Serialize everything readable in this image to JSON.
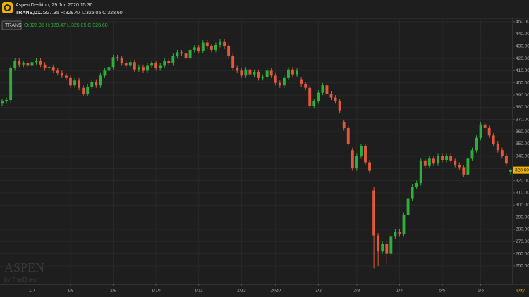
{
  "header": {
    "title": "Aspen Desktop, 29 Jun 2020 15:30",
    "symbol": "TRANS,D1",
    "ohlc": "O:327.35 H:329.47 L:325.05 C:328.60"
  },
  "chart_data": {
    "type": "candlestick",
    "symbol": "TRANS",
    "ohlc_text": "O:327.35 H:329.47 L:325.05 C:328.60",
    "categories": [
      null,
      null,
      null,
      null,
      null,
      null,
      null,
      "1/7",
      null,
      null,
      null,
      null,
      null,
      null,
      null,
      null,
      "1/8",
      null,
      null,
      null,
      null,
      null,
      null,
      null,
      null,
      null,
      "2/9",
      null,
      null,
      null,
      null,
      null,
      null,
      null,
      null,
      null,
      "1/10",
      null,
      null,
      null,
      null,
      null,
      null,
      null,
      null,
      null,
      "1/11",
      null,
      null,
      null,
      null,
      null,
      null,
      null,
      null,
      null,
      "2/12",
      null,
      null,
      null,
      null,
      null,
      null,
      null,
      "2020",
      null,
      null,
      null,
      null,
      null,
      null,
      null,
      null,
      null,
      "3/2",
      null,
      null,
      null,
      null,
      null,
      null,
      null,
      null,
      "2/3",
      null,
      null,
      null,
      null,
      null,
      null,
      null,
      null,
      null,
      "1/4",
      null,
      null,
      null,
      null,
      null,
      null,
      null,
      null,
      null,
      "5/5",
      null,
      null,
      null,
      null,
      null,
      null,
      null,
      null,
      "1/6",
      null,
      null,
      null,
      null,
      null,
      null,
      null
    ],
    "open": [
      383,
      385,
      386,
      412,
      418,
      415,
      416,
      414,
      417,
      418,
      415,
      412,
      413,
      410,
      408,
      406,
      404,
      398,
      402,
      396,
      391,
      397,
      401,
      398,
      406,
      410,
      413,
      421,
      420,
      416,
      414,
      417,
      411,
      413,
      410,
      414,
      416,
      412,
      414,
      418,
      416,
      422,
      425,
      424,
      420,
      427,
      429,
      426,
      433,
      430,
      427,
      431,
      434,
      430,
      422,
      412,
      410,
      406,
      411,
      407,
      409,
      404,
      405,
      410,
      406,
      400,
      398,
      404,
      411,
      407,
      403,
      399,
      396,
      381,
      385,
      392,
      398,
      391,
      388,
      385,
      368,
      363,
      345,
      330,
      340,
      348,
      335,
      312,
      275,
      262,
      268,
      260,
      274,
      278,
      276,
      292,
      305,
      315,
      318,
      336,
      332,
      338,
      334,
      340,
      337,
      340,
      336,
      333,
      331,
      325,
      338,
      345,
      355,
      366,
      363,
      357,
      350,
      345,
      340,
      327.35
    ],
    "high": [
      387,
      388,
      414,
      420,
      420,
      418,
      418,
      419,
      420,
      420,
      417,
      415,
      415,
      412,
      410,
      408,
      406,
      404,
      404,
      398,
      399,
      403,
      403,
      408,
      412,
      415,
      423,
      423,
      422,
      418,
      419,
      419,
      415,
      415,
      416,
      418,
      418,
      416,
      420,
      420,
      424,
      427,
      427,
      426,
      429,
      431,
      431,
      435,
      435,
      432,
      433,
      436,
      436,
      432,
      424,
      414,
      412,
      413,
      413,
      411,
      411,
      407,
      412,
      412,
      408,
      402,
      406,
      413,
      413,
      412,
      405,
      401,
      398,
      387,
      394,
      400,
      400,
      393,
      390,
      387,
      370,
      365,
      347,
      342,
      350,
      350,
      337,
      315,
      277,
      270,
      270,
      276,
      280,
      280,
      294,
      307,
      317,
      320,
      338,
      338,
      340,
      340,
      342,
      342,
      342,
      342,
      338,
      335,
      333,
      340,
      347,
      357,
      368,
      368,
      365,
      359,
      352,
      347,
      342,
      329.47
    ],
    "low": [
      381,
      383,
      384,
      410,
      413,
      413,
      412,
      412,
      415,
      413,
      410,
      410,
      408,
      406,
      404,
      402,
      396,
      396,
      394,
      389,
      389,
      395,
      396,
      396,
      404,
      408,
      411,
      418,
      414,
      412,
      412,
      409,
      409,
      408,
      408,
      412,
      410,
      410,
      412,
      414,
      414,
      420,
      422,
      418,
      418,
      425,
      424,
      424,
      428,
      425,
      425,
      429,
      428,
      420,
      410,
      408,
      404,
      404,
      405,
      405,
      402,
      402,
      403,
      404,
      398,
      396,
      396,
      402,
      405,
      405,
      397,
      394,
      379,
      379,
      383,
      390,
      389,
      386,
      383,
      375,
      361,
      348,
      328,
      328,
      338,
      333,
      326,
      248,
      250,
      260,
      252,
      258,
      272,
      274,
      274,
      290,
      303,
      313,
      316,
      330,
      330,
      332,
      332,
      335,
      335,
      334,
      331,
      329,
      323,
      323,
      336,
      343,
      353,
      361,
      355,
      348,
      343,
      338,
      332,
      325.05
    ],
    "close": [
      385,
      386,
      412,
      418,
      415,
      416,
      414,
      417,
      418,
      415,
      412,
      413,
      410,
      408,
      406,
      404,
      398,
      402,
      396,
      391,
      397,
      401,
      398,
      406,
      410,
      413,
      421,
      420,
      416,
      414,
      417,
      411,
      413,
      410,
      414,
      416,
      412,
      414,
      418,
      416,
      422,
      425,
      424,
      420,
      427,
      429,
      426,
      433,
      430,
      427,
      431,
      434,
      430,
      422,
      412,
      410,
      406,
      411,
      407,
      409,
      404,
      405,
      410,
      406,
      400,
      398,
      404,
      411,
      407,
      410,
      399,
      396,
      381,
      385,
      392,
      398,
      391,
      388,
      385,
      377,
      363,
      350,
      330,
      340,
      348,
      335,
      328,
      275,
      262,
      268,
      260,
      274,
      278,
      276,
      292,
      305,
      315,
      318,
      336,
      332,
      338,
      334,
      340,
      337,
      340,
      336,
      333,
      331,
      325,
      338,
      345,
      355,
      366,
      363,
      357,
      350,
      345,
      340,
      334,
      328.6
    ],
    "up_color": "#2fae3c",
    "down_color": "#e2583a",
    "ylim": [
      235,
      452.9
    ],
    "yticks": [
      {
        "value": 250,
        "label": "250.00"
      },
      {
        "value": 260,
        "label": "260.00"
      },
      {
        "value": 270,
        "label": "270.00"
      },
      {
        "value": 280,
        "label": "280.00"
      },
      {
        "value": 290,
        "label": "290.00"
      },
      {
        "value": 300,
        "label": "300.00"
      },
      {
        "value": 310,
        "label": "310.00"
      },
      {
        "value": 320,
        "label": "320.00"
      },
      {
        "value": 330,
        "label": "330.00"
      },
      {
        "value": 340,
        "label": "340.00"
      },
      {
        "value": 350,
        "label": "350.00"
      },
      {
        "value": 360,
        "label": "360.00"
      },
      {
        "value": 370,
        "label": "370.00"
      },
      {
        "value": 380,
        "label": "380.00"
      },
      {
        "value": 390,
        "label": "390.00"
      },
      {
        "value": 400,
        "label": "400.00"
      },
      {
        "value": 410,
        "label": "410.00"
      },
      {
        "value": 420,
        "label": "420.00"
      },
      {
        "value": 430,
        "label": "430.00"
      },
      {
        "value": 440,
        "label": "440.00"
      },
      {
        "value": 450,
        "label": "450.00"
      }
    ],
    "grid": true,
    "xlabel": "Day",
    "last_price": {
      "value": 328.6,
      "label": "328.60"
    },
    "watermark": [
      "ASPEN",
      "by ThalQuest"
    ]
  }
}
